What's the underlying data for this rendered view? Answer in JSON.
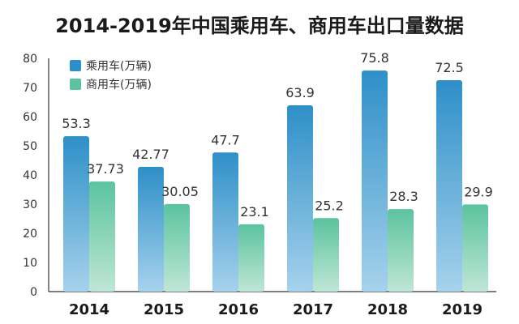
{
  "chart_data": {
    "type": "bar",
    "title": "2014-2019年中国乘用车、商用车出口量数据",
    "categories": [
      "2014",
      "2015",
      "2016",
      "2017",
      "2018",
      "2019"
    ],
    "series": [
      {
        "name": "乘用车(万辆)",
        "values": [
          53.3,
          42.77,
          47.7,
          63.9,
          75.8,
          72.5
        ],
        "value_labels": [
          "53.3",
          "42.77",
          "47.7",
          "63.9",
          "75.8",
          "72.5"
        ],
        "color": "#2e8fc8"
      },
      {
        "name": "商用车(万辆)",
        "values": [
          37.73,
          30.05,
          23.1,
          25.2,
          28.3,
          29.9
        ],
        "value_labels": [
          "37.73",
          "30.05",
          "23.1",
          "25.2",
          "28.3",
          "29.9"
        ],
        "color": "#5cc39f"
      }
    ],
    "ylim": [
      0,
      80
    ],
    "yticks": [
      0,
      10,
      20,
      30,
      40,
      50,
      60,
      70,
      80
    ],
    "xlabel": "",
    "ylabel": "",
    "grid": false,
    "legend_position": "top-left"
  }
}
